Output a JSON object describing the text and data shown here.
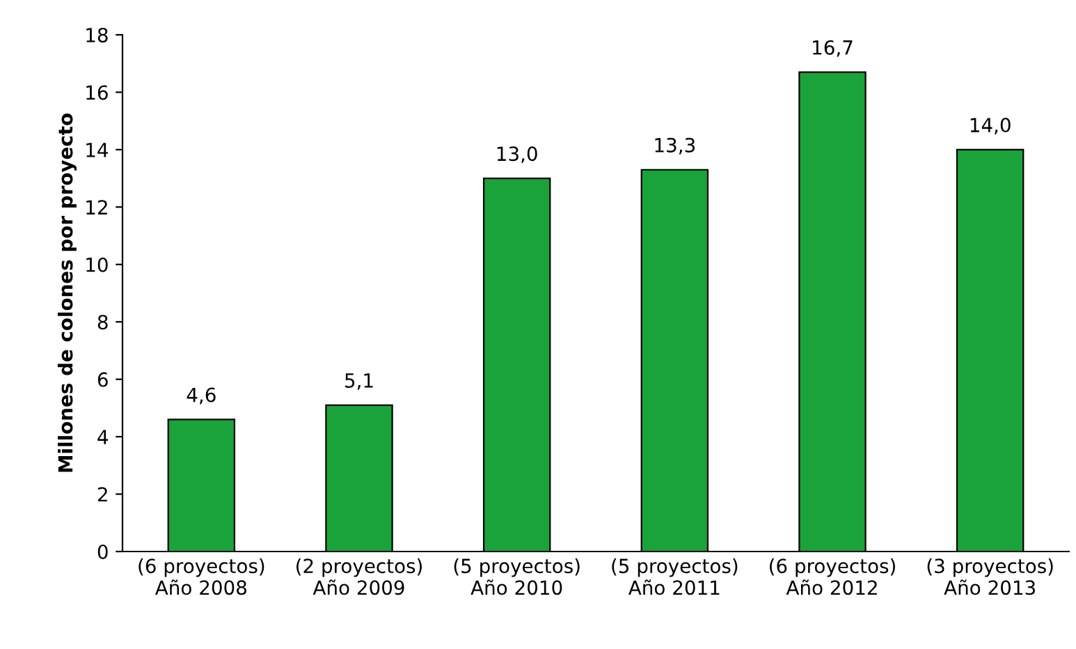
{
  "chart_data": {
    "type": "bar",
    "ylabel": "Millones de colones por proyecto",
    "categories": [
      "(6 proyectos)\nAño 2008",
      "(2 proyectos)\nAño 2009",
      "(5 proyectos)\nAño 2010",
      "(5 proyectos)\nAño 2011",
      "(6 proyectos)\nAño 2012",
      "(3 proyectos)\nAño 2013"
    ],
    "values": [
      4.6,
      5.1,
      13.0,
      13.3,
      16.7,
      14.0
    ],
    "value_labels": [
      "4,6",
      "5,1",
      "13,0",
      "13,3",
      "16,7",
      "14,0"
    ],
    "color": "#1aa33a",
    "ylim": [
      0,
      18
    ],
    "yticks": [
      0,
      2,
      4,
      6,
      8,
      10,
      12,
      14,
      16,
      18
    ],
    "grid": false
  }
}
